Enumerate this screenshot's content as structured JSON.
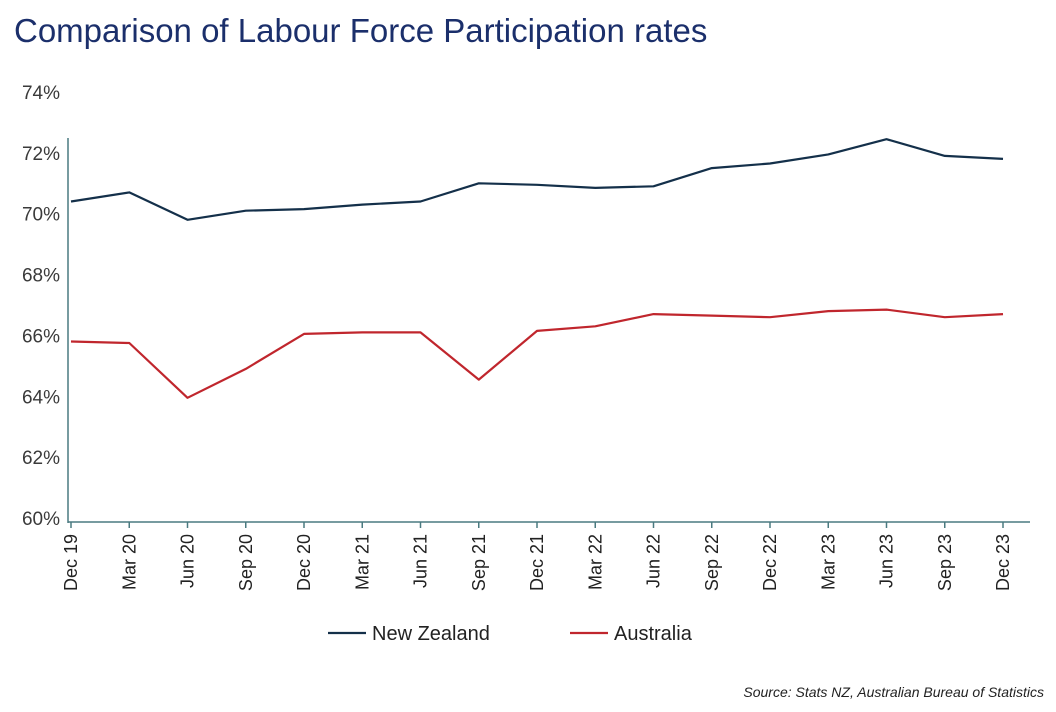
{
  "chart_data": {
    "type": "line",
    "title": "Comparison of Labour Force Participation rates",
    "xlabel": "",
    "ylabel": "",
    "categories": [
      "Dec 19",
      "Mar 20",
      "Jun 20",
      "Sep 20",
      "Dec 20",
      "Mar 21",
      "Jun 21",
      "Sep 21",
      "Dec 21",
      "Mar 22",
      "Jun 22",
      "Sep 22",
      "Dec 22",
      "Mar 23",
      "Jun 23",
      "Sep 23",
      "Dec 23"
    ],
    "yticks": [
      "60%",
      "62%",
      "64%",
      "66%",
      "68%",
      "70%",
      "72%",
      "74%"
    ],
    "ylim": [
      60,
      74
    ],
    "grid": false,
    "legend_position": "bottom",
    "series": [
      {
        "name": "New Zealand",
        "color": "#14304a",
        "values": [
          70.4,
          70.7,
          69.8,
          70.1,
          70.15,
          70.3,
          70.4,
          71.0,
          70.95,
          70.85,
          70.9,
          71.5,
          71.65,
          71.95,
          72.45,
          71.9,
          71.8
        ]
      },
      {
        "name": "Australia",
        "color": "#c0262d",
        "values": [
          65.8,
          65.75,
          63.95,
          64.9,
          66.05,
          66.1,
          66.1,
          64.55,
          66.15,
          66.3,
          66.7,
          66.65,
          66.6,
          66.8,
          66.85,
          66.6,
          66.7
        ]
      }
    ],
    "axis_color": "#4a7a80",
    "source": "Source: Stats NZ, Australian Bureau of Statistics"
  }
}
